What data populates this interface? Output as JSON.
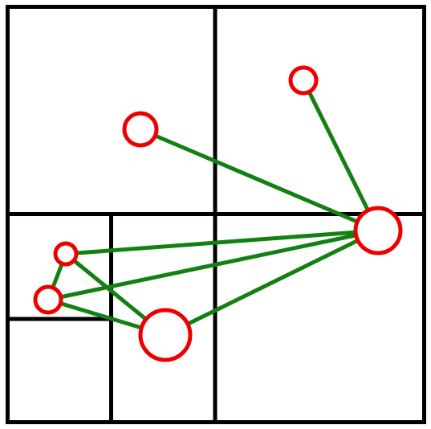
{
  "diagram": {
    "kind": "quadtree-graph",
    "colors": {
      "grid": "#000000",
      "edge": "#138013",
      "node_stroke": "#ee0000",
      "node_fill": "#ffffff",
      "background": "#ffffff"
    },
    "node_ids": [
      "top-right-node",
      "upper-middle-node",
      "hub-node",
      "left-upper-node",
      "left-lower-node",
      "bottom-center-node"
    ],
    "edges": [
      [
        "top-right-node",
        "hub-node"
      ],
      [
        "upper-middle-node",
        "hub-node"
      ],
      [
        "left-upper-node",
        "hub-node"
      ],
      [
        "left-lower-node",
        "hub-node"
      ],
      [
        "bottom-center-node",
        "hub-node"
      ],
      [
        "left-upper-node",
        "left-lower-node"
      ],
      [
        "left-upper-node",
        "bottom-center-node"
      ],
      [
        "left-lower-node",
        "bottom-center-node"
      ]
    ]
  }
}
